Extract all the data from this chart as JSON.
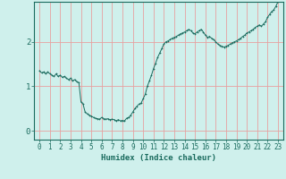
{
  "xlabel": "Humidex (Indice chaleur)",
  "bg_color": "#cff0ec",
  "line_color": "#1a6b5e",
  "grid_color_v": "#e8a0a0",
  "grid_color_h": "#e8a0a0",
  "axis_color": "#1a6b5e",
  "tick_label_color": "#1a6b5e",
  "xlim": [
    -0.5,
    23.5
  ],
  "ylim": [
    -0.2,
    2.9
  ],
  "yticks": [
    0,
    1,
    2
  ],
  "xticks": [
    0,
    1,
    2,
    3,
    4,
    5,
    6,
    7,
    8,
    9,
    10,
    11,
    12,
    13,
    14,
    15,
    16,
    17,
    18,
    19,
    20,
    21,
    22,
    23
  ],
  "x": [
    0,
    0.2,
    0.4,
    0.6,
    0.8,
    1.0,
    1.2,
    1.4,
    1.6,
    1.8,
    2.0,
    2.2,
    2.4,
    2.6,
    2.8,
    3.0,
    3.2,
    3.4,
    3.6,
    3.8,
    4.0,
    4.2,
    4.4,
    4.6,
    4.8,
    5.0,
    5.2,
    5.4,
    5.6,
    5.8,
    6.0,
    6.2,
    6.4,
    6.6,
    6.8,
    7.0,
    7.2,
    7.4,
    7.6,
    7.8,
    8.0,
    8.2,
    8.4,
    8.6,
    8.8,
    9.0,
    9.2,
    9.4,
    9.6,
    9.8,
    10.0,
    10.2,
    10.4,
    10.6,
    10.8,
    11.0,
    11.2,
    11.4,
    11.6,
    11.8,
    12.0,
    12.2,
    12.4,
    12.6,
    12.8,
    13.0,
    13.2,
    13.4,
    13.6,
    13.8,
    14.0,
    14.2,
    14.4,
    14.6,
    14.8,
    15.0,
    15.2,
    15.4,
    15.6,
    15.8,
    16.0,
    16.2,
    16.4,
    16.6,
    16.8,
    17.0,
    17.2,
    17.4,
    17.6,
    17.8,
    18.0,
    18.2,
    18.4,
    18.6,
    18.8,
    19.0,
    19.2,
    19.4,
    19.6,
    19.8,
    20.0,
    20.2,
    20.4,
    20.6,
    20.8,
    21.0,
    21.2,
    21.4,
    21.6,
    21.8,
    22.0,
    22.2,
    22.4,
    22.6,
    22.8,
    23.0
  ],
  "y": [
    1.35,
    1.3,
    1.32,
    1.28,
    1.32,
    1.28,
    1.25,
    1.22,
    1.28,
    1.22,
    1.25,
    1.2,
    1.22,
    1.18,
    1.15,
    1.18,
    1.12,
    1.15,
    1.1,
    1.08,
    0.65,
    0.6,
    0.42,
    0.38,
    0.35,
    0.33,
    0.3,
    0.28,
    0.27,
    0.26,
    0.3,
    0.27,
    0.26,
    0.27,
    0.25,
    0.26,
    0.25,
    0.22,
    0.25,
    0.22,
    0.23,
    0.22,
    0.28,
    0.3,
    0.35,
    0.42,
    0.5,
    0.55,
    0.6,
    0.62,
    0.72,
    0.82,
    1.0,
    1.12,
    1.25,
    1.4,
    1.52,
    1.65,
    1.75,
    1.85,
    1.95,
    2.0,
    2.02,
    2.05,
    2.08,
    2.1,
    2.12,
    2.15,
    2.18,
    2.2,
    2.22,
    2.25,
    2.28,
    2.25,
    2.2,
    2.18,
    2.22,
    2.25,
    2.28,
    2.22,
    2.15,
    2.1,
    2.12,
    2.08,
    2.05,
    2.0,
    1.95,
    1.92,
    1.9,
    1.88,
    1.9,
    1.92,
    1.95,
    1.98,
    2.0,
    2.02,
    2.05,
    2.08,
    2.12,
    2.15,
    2.2,
    2.22,
    2.25,
    2.28,
    2.32,
    2.35,
    2.38,
    2.35,
    2.4,
    2.45,
    2.55,
    2.62,
    2.68,
    2.72,
    2.8,
    2.9
  ]
}
